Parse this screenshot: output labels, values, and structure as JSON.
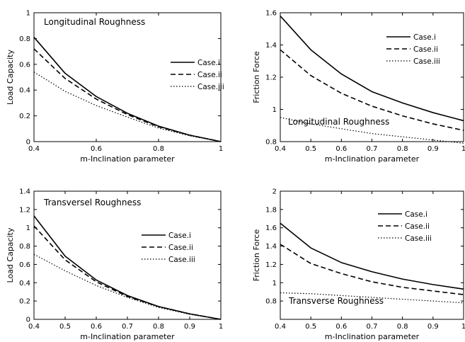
{
  "chart_data": [
    {
      "type": "line",
      "annotation": "Longitudinal Roughness",
      "xlabel": "m-Inclination parameter",
      "ylabel": "Load Capacity",
      "xlim": [
        0.4,
        1
      ],
      "ylim": [
        0,
        1
      ],
      "xticks": [
        "0.4",
        "0.6",
        "0.8",
        "1"
      ],
      "yticks": [
        "0",
        "0.2",
        "0.4",
        "0.6",
        "0.8",
        "1"
      ],
      "x": [
        0.4,
        0.5,
        0.6,
        0.7,
        0.8,
        0.9,
        1.0
      ],
      "legend_position": "upper-right",
      "series": [
        {
          "name": "Case.i",
          "style": "solid",
          "values": [
            0.81,
            0.53,
            0.35,
            0.22,
            0.12,
            0.05,
            0.0
          ]
        },
        {
          "name": "Case.ii",
          "style": "dashed",
          "values": [
            0.72,
            0.49,
            0.33,
            0.21,
            0.115,
            0.05,
            0.0
          ]
        },
        {
          "name": "Case.iii",
          "style": "dotted",
          "values": [
            0.54,
            0.39,
            0.28,
            0.19,
            0.105,
            0.045,
            0.0
          ]
        }
      ]
    },
    {
      "type": "line",
      "annotation": "Longitudinal Roughness",
      "xlabel": "m-Inclination parameter",
      "ylabel": "Friction Force",
      "xlim": [
        0.4,
        1
      ],
      "ylim": [
        0.8,
        1.6
      ],
      "xticks": [
        "0.4",
        "0.5",
        "0.6",
        "0.7",
        "0.8",
        "0.9",
        "1"
      ],
      "yticks": [
        "0.8",
        "1",
        "1.2",
        "1.4",
        "1.6"
      ],
      "x": [
        0.4,
        0.5,
        0.6,
        0.7,
        0.8,
        0.9,
        1.0
      ],
      "legend_position": "upper-right",
      "series": [
        {
          "name": "Case.i",
          "style": "solid",
          "values": [
            1.58,
            1.37,
            1.22,
            1.11,
            1.04,
            0.98,
            0.93
          ]
        },
        {
          "name": "Case.ii",
          "style": "dashed",
          "values": [
            1.37,
            1.21,
            1.1,
            1.02,
            0.96,
            0.91,
            0.87
          ]
        },
        {
          "name": "Case.iii",
          "style": "dotted",
          "values": [
            0.95,
            0.91,
            0.88,
            0.85,
            0.83,
            0.81,
            0.79
          ]
        }
      ]
    },
    {
      "type": "line",
      "annotation": "Transversel Roughness",
      "xlabel": "m-Inclination parameter",
      "ylabel": "Load Capacity",
      "xlim": [
        0.4,
        1
      ],
      "ylim": [
        0,
        1.4
      ],
      "xticks": [
        "0.4",
        "0.5",
        "0.6",
        "0.7",
        "0.8",
        "0.9",
        "1"
      ],
      "yticks": [
        "0",
        "0.2",
        "0.4",
        "0.6",
        "0.8",
        "1",
        "1.2",
        "1.4"
      ],
      "x": [
        0.4,
        0.5,
        0.6,
        0.7,
        0.8,
        0.9,
        1.0
      ],
      "legend_position": "right",
      "series": [
        {
          "name": "Case.i",
          "style": "solid",
          "values": [
            1.13,
            0.69,
            0.43,
            0.26,
            0.14,
            0.06,
            0.0
          ]
        },
        {
          "name": "Case.ii",
          "style": "dashed",
          "values": [
            1.02,
            0.65,
            0.41,
            0.25,
            0.14,
            0.06,
            0.0
          ]
        },
        {
          "name": "Case.iii",
          "style": "dotted",
          "values": [
            0.71,
            0.53,
            0.37,
            0.24,
            0.13,
            0.055,
            0.0
          ]
        }
      ]
    },
    {
      "type": "line",
      "annotation": "Transverse Roughness",
      "xlabel": "m-Inclination parameter",
      "ylabel": "Friction Force",
      "xlim": [
        0.4,
        1
      ],
      "ylim": [
        0.6,
        2
      ],
      "xticks": [
        "0.4",
        "0.5",
        "0.6",
        "0.7",
        "0.8",
        "0.9",
        "1"
      ],
      "yticks": [
        "0.8",
        "1",
        "1.2",
        "1.4",
        "1.6",
        "1.8",
        "2"
      ],
      "x": [
        0.4,
        0.5,
        0.6,
        0.7,
        0.8,
        0.9,
        1.0
      ],
      "legend_position": "upper-right",
      "series": [
        {
          "name": "Case.i",
          "style": "solid",
          "values": [
            1.65,
            1.38,
            1.22,
            1.12,
            1.04,
            0.98,
            0.93
          ]
        },
        {
          "name": "Case.ii",
          "style": "dashed",
          "values": [
            1.42,
            1.21,
            1.1,
            1.01,
            0.95,
            0.91,
            0.87
          ]
        },
        {
          "name": "Case.iii",
          "style": "dotted",
          "values": [
            0.89,
            0.88,
            0.86,
            0.84,
            0.82,
            0.8,
            0.78
          ]
        }
      ]
    }
  ]
}
